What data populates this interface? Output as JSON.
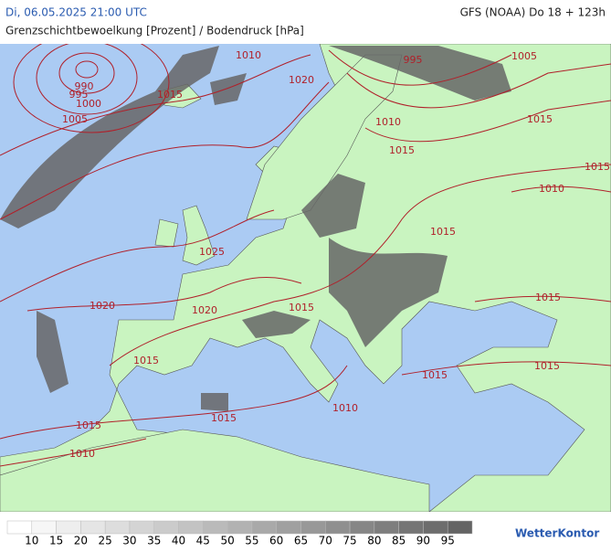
{
  "header": {
    "timestamp": "Di, 06.05.2025 21:00 UTC",
    "model": "GFS (NOAA) Do 18 + 123h",
    "subtitle": "Grenzschichtbewoelkung [Prozent] / Bodendruck [hPa]"
  },
  "map": {
    "isobar_labels": [
      "990",
      "995",
      "1000",
      "1005",
      "1010",
      "1015",
      "1020",
      "995",
      "1005",
      "1010",
      "1015",
      "1015",
      "1015",
      "1010",
      "1015",
      "1025",
      "1020",
      "1020",
      "1015",
      "1015",
      "1015",
      "1015",
      "1015",
      "1010",
      "1015",
      "1015",
      "1010"
    ]
  },
  "legend": {
    "labels": [
      "10",
      "15",
      "20",
      "25",
      "30",
      "35",
      "40",
      "45",
      "50",
      "55",
      "60",
      "65",
      "70",
      "75",
      "80",
      "85",
      "90",
      "95"
    ],
    "brand": "WetterKontor"
  }
}
